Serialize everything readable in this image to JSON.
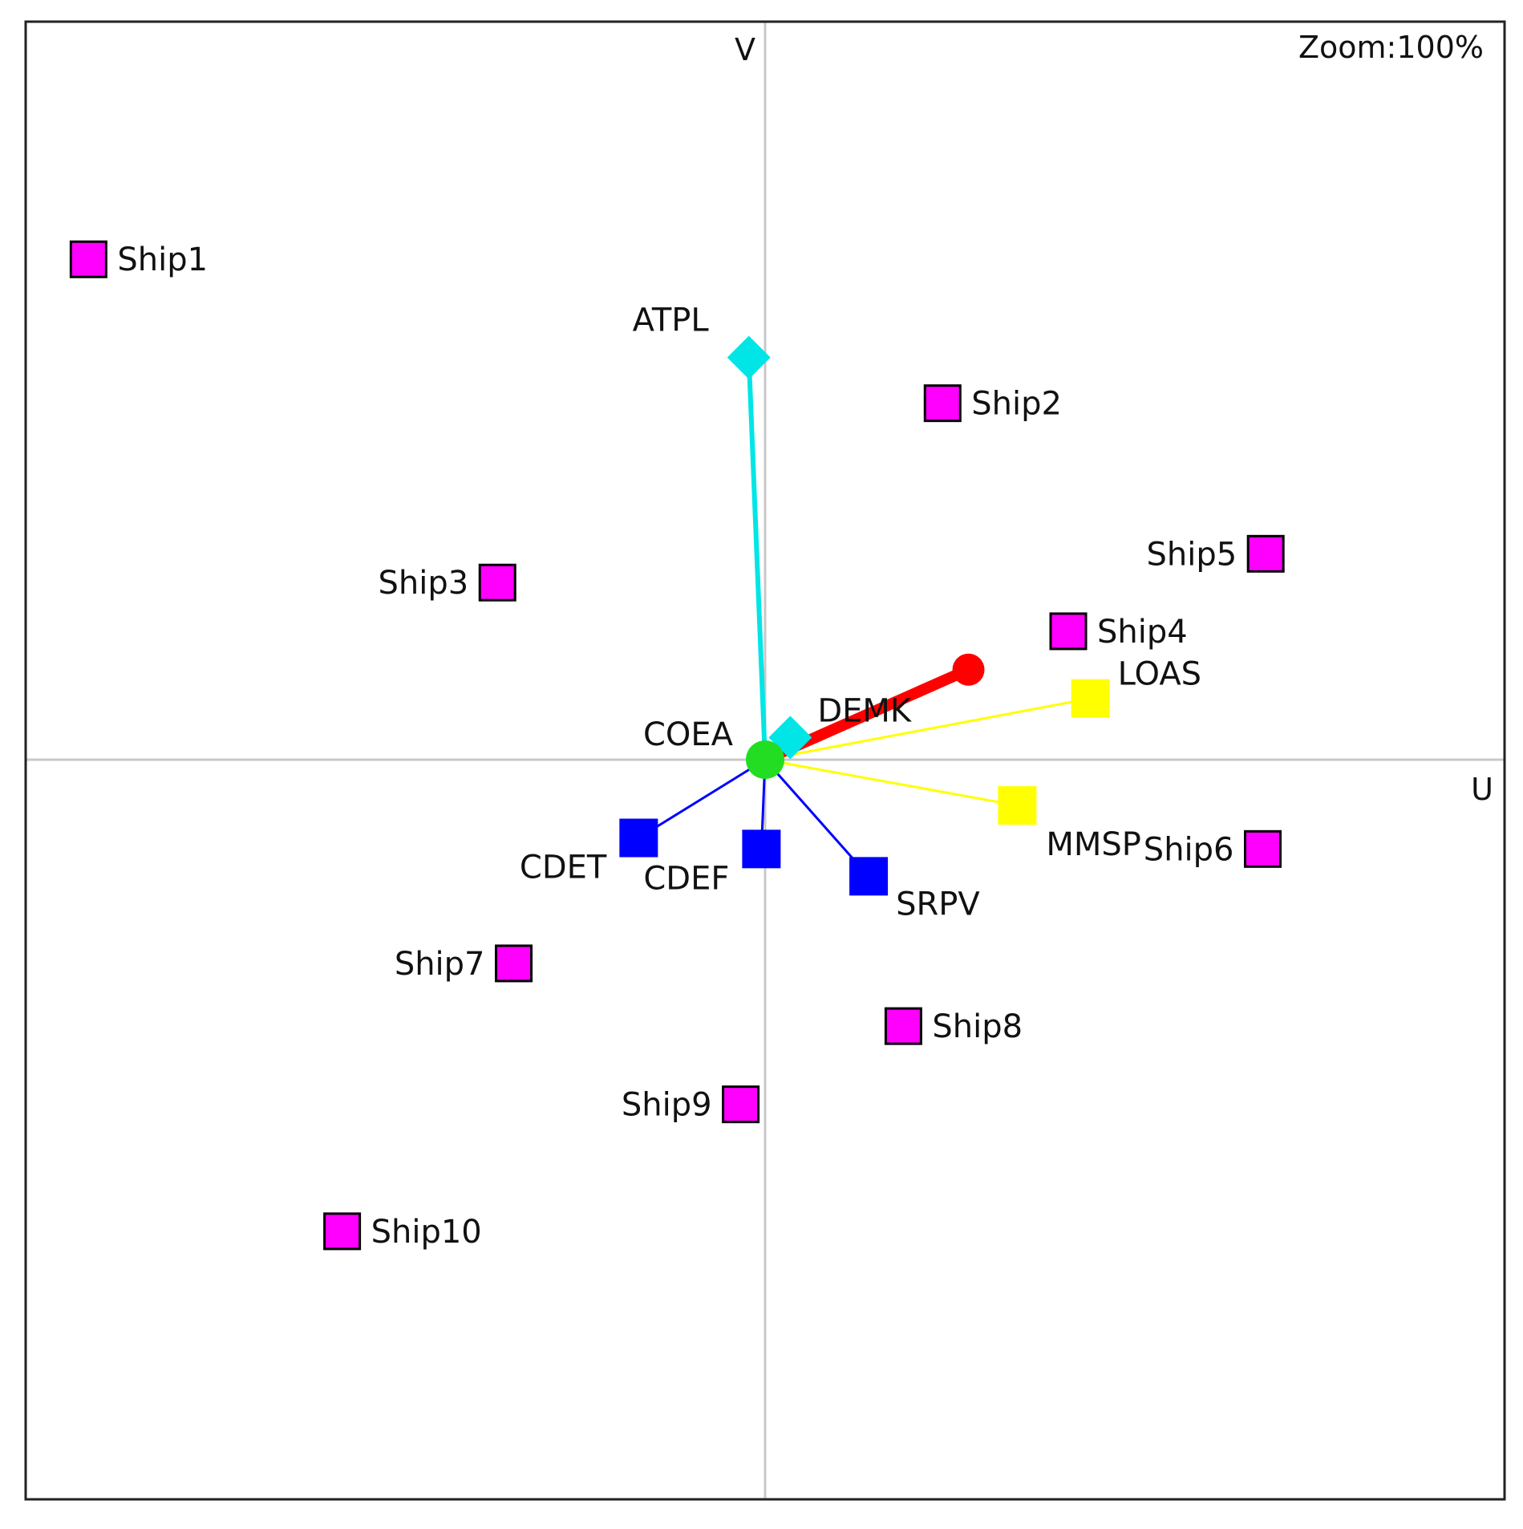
{
  "zoom_label": "Zoom:100%",
  "colors": {
    "axis": "#c8c8c8",
    "frame": "#222222",
    "ship": "#ff00ff",
    "origin": "#22dd22"
  },
  "chart_data": {
    "type": "scatter",
    "title": "",
    "xlabel": "U",
    "ylabel": "V",
    "xlim": [
      -1,
      1
    ],
    "ylim": [
      -1,
      1
    ],
    "grid": false,
    "origin": {
      "label": "COEA",
      "x": 0,
      "y": 0,
      "color": "#22dd22"
    },
    "ships": [
      {
        "label": "Ship1",
        "x": -0.915,
        "y": 0.678
      },
      {
        "label": "Ship2",
        "x": 0.24,
        "y": 0.483
      },
      {
        "label": "Ship3",
        "x": -0.362,
        "y": 0.24
      },
      {
        "label": "Ship4",
        "x": 0.41,
        "y": 0.174
      },
      {
        "label": "Ship5",
        "x": 0.677,
        "y": 0.279
      },
      {
        "label": "Ship6",
        "x": 0.673,
        "y": -0.121
      },
      {
        "label": "Ship7",
        "x": -0.34,
        "y": -0.276
      },
      {
        "label": "Ship8",
        "x": 0.187,
        "y": -0.361
      },
      {
        "label": "Ship9",
        "x": -0.033,
        "y": -0.467
      },
      {
        "label": "Ship10",
        "x": -0.572,
        "y": -0.639
      }
    ],
    "attributes": [
      {
        "label": "ATPL",
        "x": -0.022,
        "y": 0.545,
        "color": "#00e5e5",
        "marker": "diamond"
      },
      {
        "label": "DEMK",
        "x": 0.034,
        "y": 0.03,
        "color": "#00e5e5",
        "marker": "diamond"
      },
      {
        "label": "LOAS",
        "x": 0.44,
        "y": 0.083,
        "color": "#ffff00",
        "marker": "square"
      },
      {
        "label": "MMSP",
        "x": 0.341,
        "y": -0.062,
        "color": "#ffff00",
        "marker": "square"
      },
      {
        "label": "CDET",
        "x": -0.171,
        "y": -0.106,
        "color": "#0000ff",
        "marker": "square"
      },
      {
        "label": "CDEF",
        "x": -0.005,
        "y": -0.121,
        "color": "#0000ff",
        "marker": "square"
      },
      {
        "label": "SRPV",
        "x": 0.14,
        "y": -0.158,
        "color": "#0000ff",
        "marker": "square"
      },
      {
        "label": "",
        "x": 0.275,
        "y": 0.122,
        "color": "#ff0000",
        "marker": "circle"
      }
    ]
  }
}
